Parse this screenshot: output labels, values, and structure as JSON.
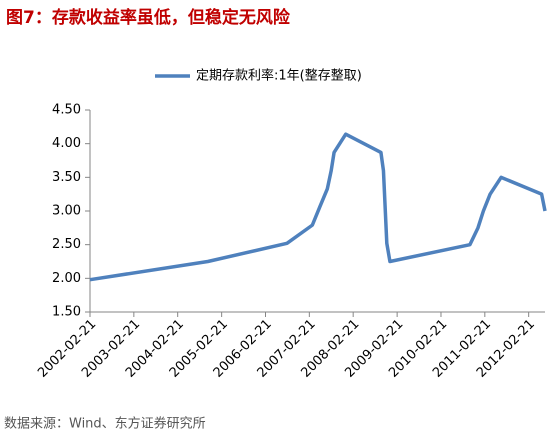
{
  "chart_data": {
    "type": "line",
    "title": "图7：存款收益率虽低，但稳定无风险",
    "source": "数据来源：Wind、东方证券研究所",
    "x": [
      "2002-02-21",
      "2004-10-29",
      "2006-08-19",
      "2007-03-18",
      "2007-05-19",
      "2007-07-21",
      "2007-08-22",
      "2007-09-15",
      "2007-12-21",
      "2008-10-09",
      "2008-10-30",
      "2008-11-27",
      "2008-12-23",
      "2010-10-20",
      "2010-12-26",
      "2011-02-09",
      "2011-04-06",
      "2011-07-07",
      "2012-06-08",
      "2012-07-06"
    ],
    "series": [
      {
        "name": "定期存款利率:1年(整存整取)",
        "color": "#4f81bd",
        "values": [
          1.98,
          2.25,
          2.52,
          2.79,
          3.06,
          3.33,
          3.6,
          3.87,
          4.14,
          3.87,
          3.6,
          2.52,
          2.25,
          2.5,
          2.75,
          3.0,
          3.25,
          3.5,
          3.25,
          3.0
        ]
      }
    ],
    "xlim": [
      "2002-02-21",
      "2012-07-06"
    ],
    "xticks": [
      "2002-02-21",
      "2003-02-21",
      "2004-02-21",
      "2005-02-21",
      "2006-02-21",
      "2007-02-21",
      "2008-02-21",
      "2009-02-21",
      "2010-02-21",
      "2011-02-21",
      "2012-02-21"
    ],
    "ylim": [
      1.5,
      4.5
    ],
    "yticks": [
      {
        "value": 1.5,
        "label": "1.50"
      },
      {
        "value": 2,
        "label": "2.00"
      },
      {
        "value": 2.5,
        "label": "2.50"
      },
      {
        "value": 3,
        "label": "3.00"
      },
      {
        "value": 3.5,
        "label": "3.50"
      },
      {
        "value": 4,
        "label": "4.00"
      },
      {
        "value": 4.5,
        "label": "4.50"
      }
    ],
    "legend": "top",
    "grid": false
  }
}
